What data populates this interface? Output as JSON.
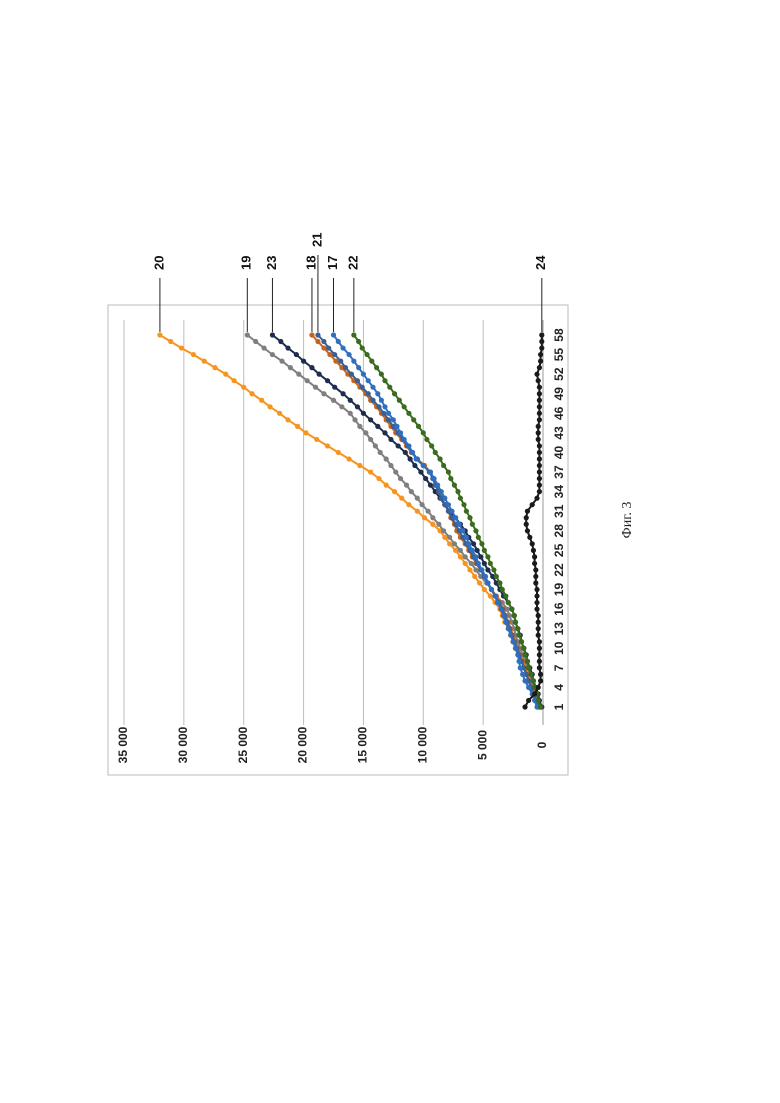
{
  "chart_data": {
    "type": "line",
    "caption": "Фиг. 3",
    "categories": [
      1,
      null,
      null,
      4,
      null,
      null,
      7,
      null,
      null,
      10,
      null,
      null,
      13,
      null,
      null,
      16,
      null,
      null,
      19,
      null,
      null,
      22,
      null,
      null,
      25,
      null,
      null,
      28,
      null,
      null,
      31,
      null,
      null,
      34,
      null,
      null,
      37,
      null,
      null,
      40,
      null,
      null,
      43,
      null,
      null,
      46,
      null,
      null,
      49,
      null,
      null,
      52,
      null,
      null,
      55,
      null,
      null,
      58
    ],
    "ylim": [
      0,
      35000
    ],
    "yticks": [
      0,
      {
        "value": 5000,
        "label": "5 000"
      },
      {
        "value": 10000,
        "label": "10 000"
      },
      {
        "value": 15000,
        "label": "15 000"
      },
      {
        "value": 20000,
        "label": "20 000"
      },
      {
        "value": 25000,
        "label": "25 000"
      },
      {
        "value": 30000,
        "label": "30 000"
      },
      {
        "value": 35000,
        "label": "35 000"
      }
    ],
    "grid": true,
    "series": [
      {
        "name": "20",
        "color": "#f7941d",
        "values": [
          300,
          500,
          700,
          1000,
          1200,
          1400,
          1600,
          1800,
          2100,
          2300,
          2500,
          2700,
          2900,
          3200,
          3400,
          3600,
          4000,
          4400,
          4900,
          5300,
          5700,
          6100,
          6500,
          6900,
          7300,
          7800,
          8200,
          8600,
          9200,
          9900,
          10500,
          11200,
          11800,
          12400,
          13100,
          13700,
          14400,
          15300,
          16200,
          17100,
          18000,
          18900,
          19800,
          20500,
          21300,
          22000,
          22800,
          23500,
          24300,
          25000,
          25800,
          26500,
          27400,
          28300,
          29200,
          30200,
          31100,
          32000
        ]
      },
      {
        "name": "19",
        "color": "#7f7f7f",
        "values": [
          200,
          400,
          600,
          800,
          900,
          1100,
          1300,
          1500,
          1700,
          1900,
          2100,
          2300,
          2400,
          2600,
          2800,
          3000,
          3400,
          3900,
          4300,
          4700,
          5200,
          5600,
          6000,
          6500,
          6900,
          7400,
          7800,
          8300,
          8700,
          9200,
          9600,
          10100,
          10500,
          11000,
          11400,
          11900,
          12300,
          12700,
          13100,
          13600,
          14000,
          14400,
          14800,
          15300,
          15700,
          16100,
          16800,
          17500,
          18300,
          19000,
          19700,
          20400,
          21100,
          21800,
          22600,
          23300,
          24000,
          24700
        ]
      },
      {
        "name": "23",
        "color": "#1f2d4d",
        "values": [
          100,
          300,
          400,
          600,
          800,
          900,
          1100,
          1300,
          1400,
          1600,
          1800,
          1900,
          2100,
          2300,
          2400,
          2600,
          2900,
          3300,
          3600,
          3900,
          4200,
          4600,
          4900,
          5200,
          5500,
          5800,
          6200,
          6500,
          6900,
          7300,
          7800,
          8200,
          8600,
          9000,
          9400,
          9800,
          10200,
          10700,
          11100,
          11500,
          12100,
          12700,
          13200,
          13800,
          14400,
          15000,
          15500,
          16100,
          16700,
          17400,
          18000,
          18700,
          19300,
          20000,
          20600,
          21300,
          21900,
          22600
        ]
      },
      {
        "name": "18",
        "color": "#c5651b",
        "values": [
          300,
          500,
          700,
          900,
          1100,
          1300,
          1500,
          1700,
          1900,
          2100,
          2300,
          2500,
          2700,
          2900,
          3100,
          3300,
          3600,
          3900,
          4300,
          4600,
          4900,
          5200,
          5600,
          5900,
          6200,
          6500,
          6900,
          7200,
          7400,
          7700,
          7900,
          8200,
          8400,
          8700,
          8900,
          9200,
          9400,
          9900,
          10500,
          11000,
          11400,
          11800,
          12300,
          12700,
          13100,
          13500,
          13900,
          14400,
          14800,
          15300,
          15800,
          16300,
          16800,
          17300,
          17800,
          18300,
          18800,
          19300
        ]
      },
      {
        "name": "21",
        "color": "#3b5f95",
        "values": [
          400,
          600,
          800,
          1000,
          1200,
          1400,
          1600,
          1800,
          2000,
          2200,
          2400,
          2600,
          2800,
          3000,
          3200,
          3400,
          3700,
          4000,
          4300,
          4600,
          4900,
          5200,
          5500,
          5800,
          6100,
          6400,
          6700,
          7000,
          7300,
          7600,
          7900,
          8200,
          8500,
          8700,
          9000,
          9200,
          9500,
          10000,
          10500,
          10900,
          11300,
          11700,
          12100,
          12500,
          12900,
          13300,
          13700,
          14200,
          14600,
          15100,
          15500,
          16000,
          16500,
          16900,
          17400,
          17900,
          18300,
          18800
        ]
      },
      {
        "name": "17",
        "color": "#2f6fbf",
        "values": [
          500,
          700,
          900,
          1200,
          1500,
          1700,
          1900,
          2000,
          2100,
          2300,
          2500,
          2700,
          2900,
          3100,
          3300,
          3500,
          3800,
          4000,
          4300,
          4600,
          4800,
          5100,
          5400,
          5600,
          5900,
          6200,
          6400,
          6700,
          7000,
          7300,
          7600,
          7900,
          8200,
          8500,
          8800,
          9100,
          9400,
          10000,
          10600,
          10900,
          11200,
          11600,
          11900,
          12200,
          12500,
          12900,
          13200,
          13500,
          13800,
          14200,
          14600,
          15000,
          15400,
          15800,
          16200,
          16700,
          17100,
          17500
        ]
      },
      {
        "name": "22",
        "color": "#3a6b1e",
        "values": [
          200,
          400,
          500,
          700,
          800,
          1000,
          1200,
          1300,
          1500,
          1600,
          1800,
          2000,
          2100,
          2300,
          2400,
          2600,
          2900,
          3100,
          3400,
          3600,
          3900,
          4100,
          4400,
          4600,
          4900,
          5100,
          5400,
          5600,
          5900,
          6100,
          6400,
          6600,
          6900,
          7100,
          7400,
          7700,
          7900,
          8300,
          8600,
          9000,
          9300,
          9700,
          10000,
          10400,
          10800,
          11200,
          11600,
          12000,
          12400,
          12800,
          13200,
          13500,
          13900,
          14300,
          14700,
          15100,
          15400,
          15800
        ]
      },
      {
        "name": "24",
        "color": "#1a1a1a",
        "values": [
          1500,
          1200,
          700,
          400,
          200,
          200,
          300,
          300,
          300,
          300,
          300,
          400,
          400,
          400,
          400,
          500,
          500,
          500,
          500,
          600,
          600,
          600,
          700,
          700,
          800,
          900,
          1100,
          1300,
          1400,
          1400,
          1300,
          900,
          500,
          300,
          300,
          300,
          300,
          300,
          300,
          300,
          300,
          400,
          400,
          400,
          300,
          300,
          300,
          300,
          300,
          300,
          400,
          500,
          300,
          200,
          200,
          100,
          100,
          100
        ]
      }
    ]
  }
}
